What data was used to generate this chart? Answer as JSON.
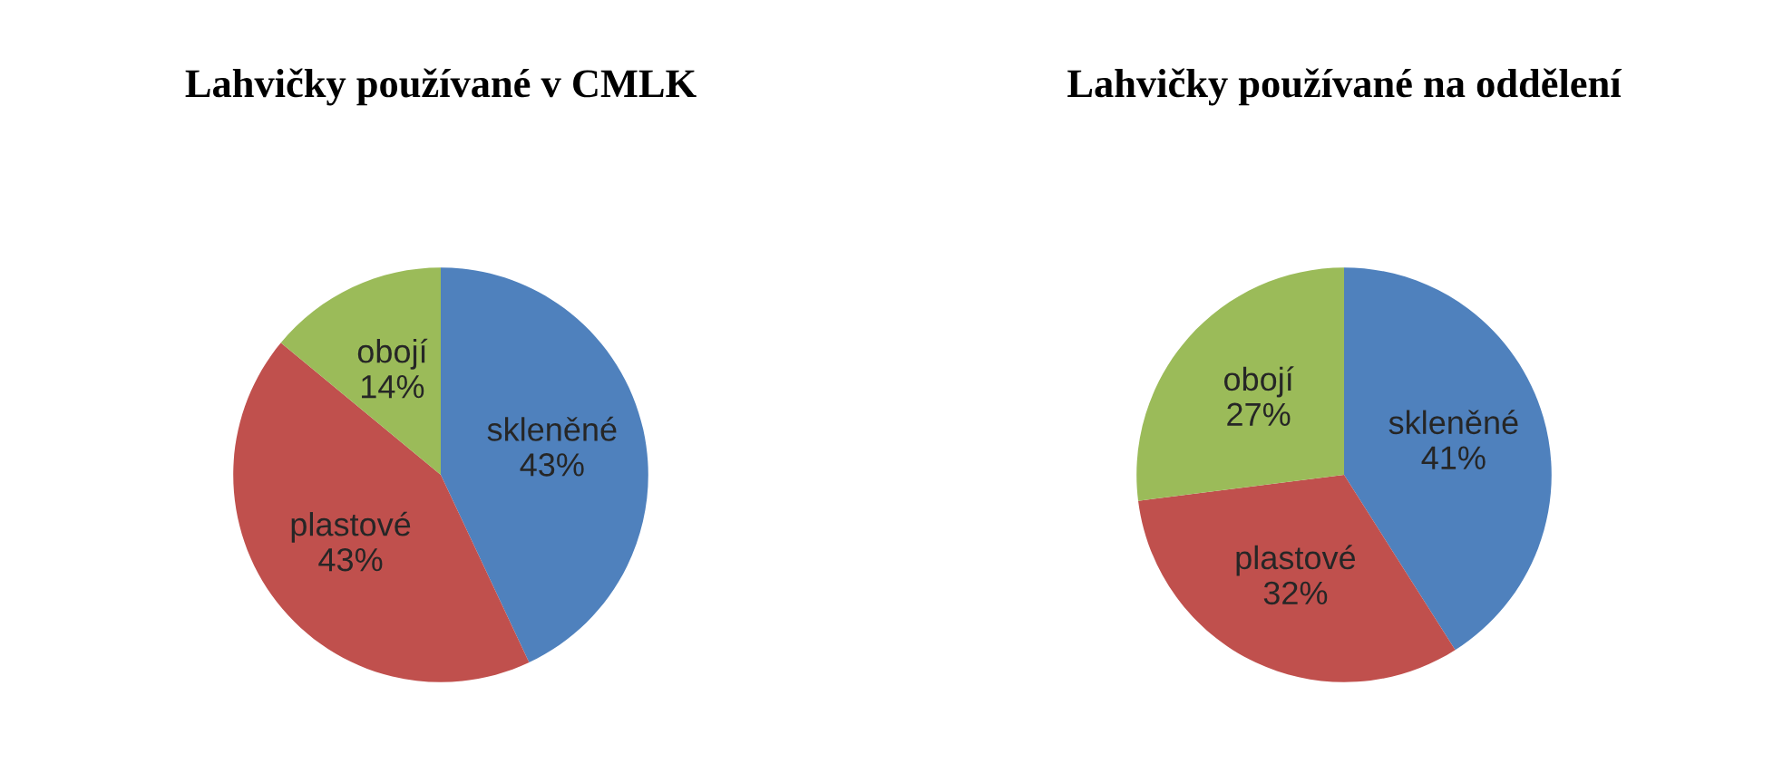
{
  "chart_data": [
    {
      "type": "pie",
      "title": "Lahvičky používané v CMLK",
      "categories": [
        "skleněné",
        "plastové",
        "obojí"
      ],
      "values": [
        43,
        43,
        14
      ],
      "value_labels": [
        "43%",
        "43%",
        "14%"
      ],
      "colors": [
        "#4f81bd",
        "#c0504d",
        "#9bbb59"
      ],
      "legend": false
    },
    {
      "type": "pie",
      "title": "Lahvičky používané na oddělení",
      "categories": [
        "skleněné",
        "plastové",
        "obojí"
      ],
      "values": [
        41,
        32,
        27
      ],
      "value_labels": [
        "41%",
        "32%",
        "27%"
      ],
      "colors": [
        "#4f81bd",
        "#c0504d",
        "#9bbb59"
      ],
      "legend": false
    }
  ]
}
